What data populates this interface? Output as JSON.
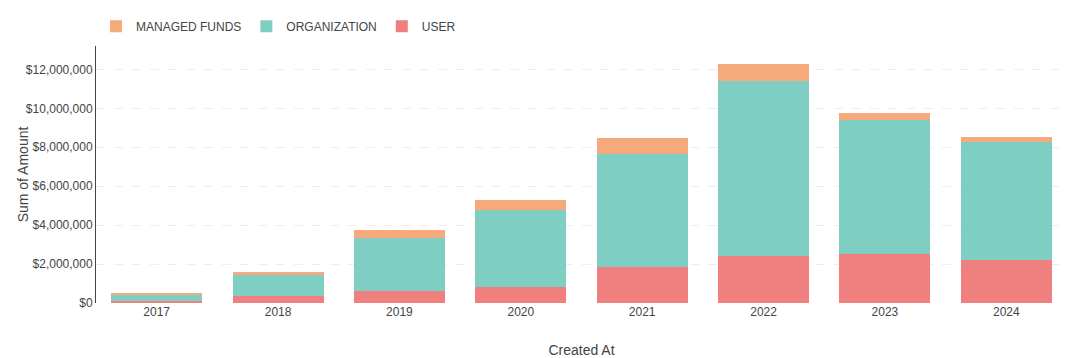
{
  "chart_data": {
    "type": "bar",
    "stacked": true,
    "xlabel": "Created At",
    "ylabel": "Sum of Amount",
    "categories": [
      "2017",
      "2018",
      "2019",
      "2020",
      "2021",
      "2022",
      "2023",
      "2024"
    ],
    "series": [
      {
        "name": "USER",
        "color": "#f08080",
        "values": [
          100000,
          350000,
          600000,
          800000,
          1850000,
          2400000,
          2500000,
          2200000
        ]
      },
      {
        "name": "ORGANIZATION",
        "color": "#7ecec4",
        "values": [
          350000,
          1100000,
          2750000,
          4000000,
          5800000,
          9000000,
          6900000,
          6050000
        ]
      },
      {
        "name": "MANAGED FUNDS",
        "color": "#f6a97a",
        "values": [
          50000,
          150000,
          400000,
          500000,
          850000,
          900000,
          380000,
          300000
        ]
      }
    ],
    "ylim": [
      0,
      13200000
    ],
    "yticks": [
      {
        "value": 0,
        "label": "$0"
      },
      {
        "value": 2000000,
        "label": "$2,000,000"
      },
      {
        "value": 4000000,
        "label": "$4,000,000"
      },
      {
        "value": 6000000,
        "label": "$6,000,000"
      },
      {
        "value": 8000000,
        "label": "$8,000,000"
      },
      {
        "value": 10000000,
        "label": "$10,000,000"
      },
      {
        "value": 12000000,
        "label": "$12,000,000"
      }
    ],
    "grid": true,
    "legend": "upper left"
  }
}
